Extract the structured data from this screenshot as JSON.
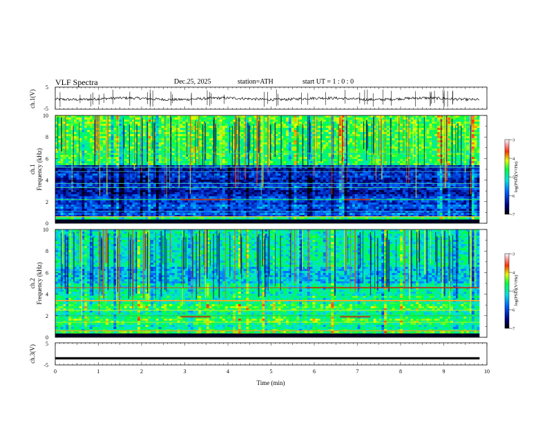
{
  "header": {
    "title": "VLF  Spectra",
    "date": "Dec.25, 2025",
    "station": "station=ATH",
    "start": "start  UT  =   1 : 0  : 0"
  },
  "chart_data": [
    {
      "type": "line",
      "ylabel": "ch.1(V)",
      "yticks": [
        "5",
        "-5"
      ],
      "ylim": [
        -5,
        5
      ],
      "description_level": 0.2
    },
    {
      "type": "heatmap",
      "ylabel_line1": "ch.1",
      "ylabel_line2": "Frequency (kHz)",
      "yticks": [
        "0",
        "2",
        "4",
        "6",
        "8",
        "10"
      ],
      "ylim": [
        0,
        10
      ],
      "colorbar": {
        "label": "log(PSD)(V²/Hz)",
        "ticks": [
          "-3",
          "-4",
          "-5",
          "-6",
          "-7"
        ],
        "range": [
          -7,
          -3
        ]
      }
    },
    {
      "type": "heatmap",
      "ylabel_line1": "ch.2",
      "ylabel_line2": "Frequency (kHz)",
      "yticks": [
        "0",
        "2",
        "4",
        "6",
        "8",
        "10"
      ],
      "ylim": [
        0,
        10
      ],
      "colorbar": {
        "label": "log(PSD)(V²/Hz)",
        "ticks": [
          "-3",
          "-4",
          "-5",
          "-6",
          "-7"
        ],
        "range": [
          -7,
          -3
        ]
      }
    },
    {
      "type": "line",
      "ylabel": "ch.3(V)",
      "yticks": [
        "5",
        "-5"
      ],
      "ylim": [
        -5,
        5
      ],
      "level": -2
    }
  ],
  "xaxis": {
    "label": "Time  (min)",
    "ticks": [
      "0",
      "1",
      "2",
      "3",
      "4",
      "5",
      "6",
      "7",
      "8",
      "9",
      "10"
    ],
    "xlim": [
      0,
      10
    ],
    "data_end": 9.83
  }
}
